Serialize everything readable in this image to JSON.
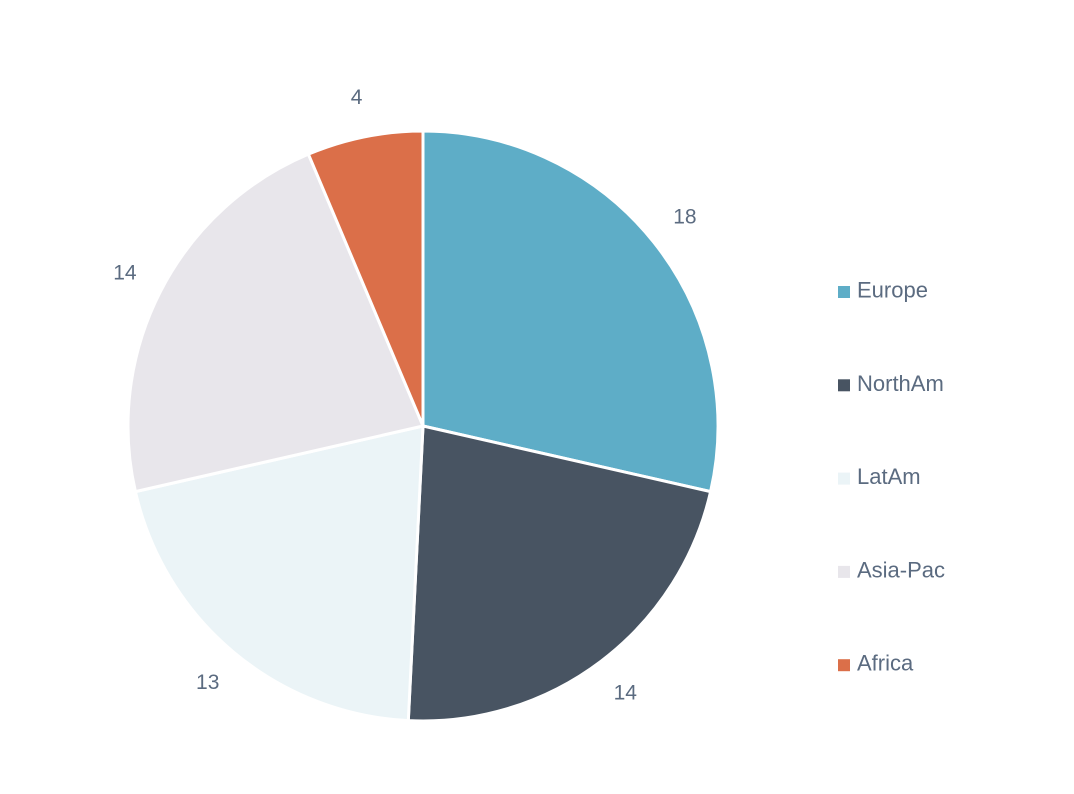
{
  "chart_data": {
    "type": "pie",
    "categories": [
      "Europe",
      "NorthAm",
      "LatAm",
      "Asia-Pac",
      "Africa"
    ],
    "values": [
      18,
      14,
      13,
      14,
      4
    ],
    "colors": [
      "#5eadc7",
      "#485462",
      "#ebf4f7",
      "#e8e6eb",
      "#db6f49"
    ],
    "show_data_labels": true,
    "legend_position": "right",
    "start_angle": "top",
    "direction": "clockwise",
    "slice_border_color": "#ffffff",
    "label_color": "#5b6b80"
  }
}
